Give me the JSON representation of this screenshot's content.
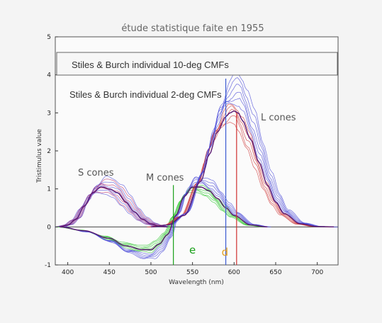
{
  "title": "étude statistique faite en 1955",
  "legend": {
    "box1": "Stiles & Burch individual 10-deg CMFs",
    "box2": "Stiles & Burch individual 2-deg CMFs"
  },
  "cones": {
    "s": "S cones",
    "m": "M cones",
    "l": "L cones"
  },
  "markers": {
    "e": {
      "label": "e",
      "x": 550,
      "color": "#1aa01a"
    },
    "d": {
      "label": "d",
      "x": 589,
      "color": "#e3a020"
    }
  },
  "colors": {
    "s_series": "#c0306a",
    "blue_series": "#4a4ad8",
    "m_series": "#30c830",
    "l_series": "#d03838",
    "mean": "#5a1870",
    "green_line": "#1aa01a",
    "blue_line": "#3a5ad0",
    "red_line": "#d03030"
  },
  "chart_data": {
    "type": "line",
    "title": "étude statistique faite en 1955",
    "xlabel": "Wavelength (nm)",
    "ylabel": "Tristimulus value",
    "xlim": [
      385,
      725
    ],
    "ylim": [
      -1,
      5
    ],
    "x_ticks": [
      400,
      450,
      500,
      550,
      600,
      650,
      700
    ],
    "y_ticks": [
      -1,
      0,
      1,
      2,
      3,
      4,
      5
    ],
    "legend_boxes": [
      "Stiles & Burch individual 10-deg CMFs",
      "Stiles & Burch individual 2-deg CMFs"
    ],
    "vertical_lines": [
      {
        "x": 527,
        "color": "green",
        "from": -1,
        "to": 1.1
      },
      {
        "x": 590,
        "color": "blue",
        "from": -1,
        "to": 3.9
      },
      {
        "x": 603,
        "color": "red",
        "from": -1,
        "to": 3.0
      }
    ],
    "series": [
      {
        "name": "S cones",
        "x": [
          390,
          400,
          410,
          420,
          430,
          440,
          450,
          460,
          470,
          480,
          490,
          500,
          510,
          520
        ],
        "values": [
          0.0,
          0.05,
          0.2,
          0.55,
          0.9,
          1.05,
          1.0,
          0.9,
          0.65,
          0.4,
          0.2,
          0.08,
          0.02,
          0.0
        ]
      },
      {
        "name": "M cones",
        "x": [
          390,
          420,
          450,
          470,
          490,
          500,
          510,
          520,
          530,
          540,
          550,
          560,
          570,
          580,
          590,
          600,
          620,
          640
        ],
        "values": [
          0.0,
          -0.1,
          -0.3,
          -0.5,
          -0.6,
          -0.6,
          -0.45,
          -0.2,
          0.3,
          0.8,
          1.05,
          1.05,
          0.95,
          0.75,
          0.5,
          0.3,
          0.05,
          0.0
        ]
      },
      {
        "name": "L cones",
        "x": [
          500,
          520,
          540,
          560,
          570,
          580,
          590,
          595,
          600,
          605,
          610,
          620,
          630,
          640,
          650,
          660,
          680,
          700,
          720
        ],
        "values": [
          0.0,
          0.05,
          0.3,
          1.2,
          1.9,
          2.5,
          2.9,
          3.0,
          3.05,
          3.0,
          2.8,
          2.3,
          1.7,
          1.1,
          0.65,
          0.35,
          0.08,
          0.01,
          0.0
        ]
      }
    ]
  }
}
